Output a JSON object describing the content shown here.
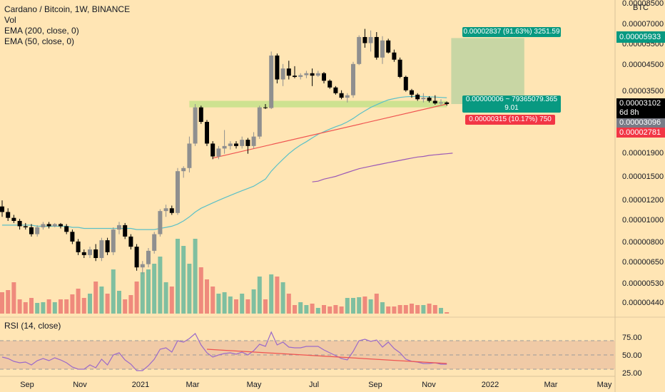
{
  "legend": {
    "title": "Cardano / Bitcoin, 1W, BINANCE",
    "vol": "Vol",
    "ema200": "EMA (200, close, 0)",
    "ema50": "EMA (50, close, 0)"
  },
  "rsi_legend": "RSI (14, close)",
  "price_axis": {
    "currency": "BTC",
    "current_price": "0.00003102",
    "countdown": "6d 8h",
    "tag_gray": "0.00003096",
    "tag_green": "0.00005933",
    "tag_red": "0.00002781"
  },
  "position_tool": {
    "target_label": "0.00002837 (91.63%) 3251.59",
    "mid_label_1": "0.00000006 ~ 79365079.365",
    "mid_label_2": "9.01",
    "stop_label": "0.00000315 (10.17%) 750"
  },
  "colors": {
    "background": "#ffe5b4",
    "bull": "#8f8f8f",
    "bear": "#000000",
    "vol_up": "#7fbfa0",
    "vol_down": "#ef8a7c",
    "ema50": "#5bc0c7",
    "ema200": "#9b59b6",
    "trendline": "#ef5350",
    "zone": "#c6e28a",
    "target_zone": "#c8d6a4",
    "green_tag": "#089981",
    "red_tag": "#f23645",
    "rsi_line": "#9b6ac9",
    "rsi_band": "#f0caa6"
  },
  "chart_data": {
    "type": "candlestick",
    "y_axis_scale": "log",
    "y_ticks": [
      "0.00008500",
      "0.00007000",
      "0.00005500",
      "0.00004500",
      "0.00003500",
      "0.00002500",
      "0.00001900",
      "0.00001500",
      "0.00001200",
      "0.00001000",
      "0.00000800",
      "0.00000650",
      "0.00000530",
      "0.00000440"
    ],
    "x_ticks": [
      "Sep",
      "Nov",
      "2021",
      "Mar",
      "May",
      "Jul",
      "Sep",
      "Nov",
      "2022",
      "Mar",
      "May"
    ],
    "rsi_ticks": [
      "75.00",
      "50.00",
      "25.00"
    ],
    "candles": [
      {
        "o": 1.13e-05,
        "h": 1.2e-05,
        "l": 1.02e-05,
        "c": 1.07e-05
      },
      {
        "o": 1.07e-05,
        "h": 1.11e-05,
        "l": 9.8e-06,
        "c": 1.01e-05
      },
      {
        "o": 1.01e-05,
        "h": 1.04e-05,
        "l": 9.6e-06,
        "c": 9.8e-06
      },
      {
        "o": 9.8e-06,
        "h": 1e-05,
        "l": 9e-06,
        "c": 9.3e-06
      },
      {
        "o": 9.3e-06,
        "h": 9.6e-06,
        "l": 9e-06,
        "c": 9.2e-06
      },
      {
        "o": 9.2e-06,
        "h": 9.5e-06,
        "l": 8.4e-06,
        "c": 8.6e-06
      },
      {
        "o": 8.6e-06,
        "h": 9.4e-06,
        "l": 8.4e-06,
        "c": 9.2e-06
      },
      {
        "o": 9.2e-06,
        "h": 9.7e-06,
        "l": 9e-06,
        "c": 9.5e-06
      },
      {
        "o": 9.5e-06,
        "h": 9.7e-06,
        "l": 9.1e-06,
        "c": 9.3e-06
      },
      {
        "o": 9.3e-06,
        "h": 9.6e-06,
        "l": 9.2e-06,
        "c": 9.5e-06
      },
      {
        "o": 9.5e-06,
        "h": 9.6e-06,
        "l": 9.1e-06,
        "c": 9.3e-06
      },
      {
        "o": 9.3e-06,
        "h": 9.5e-06,
        "l": 8.6e-06,
        "c": 8.8e-06
      },
      {
        "o": 8.8e-06,
        "h": 9e-06,
        "l": 7.8e-06,
        "c": 8e-06
      },
      {
        "o": 8e-06,
        "h": 8.2e-06,
        "l": 7e-06,
        "c": 7.2e-06
      },
      {
        "o": 7.2e-06,
        "h": 7.4e-06,
        "l": 6.8e-06,
        "c": 7e-06
      },
      {
        "o": 7e-06,
        "h": 7.6e-06,
        "l": 6.8e-06,
        "c": 7.4e-06
      },
      {
        "o": 7.4e-06,
        "h": 7.8e-06,
        "l": 6.6e-06,
        "c": 6.8e-06
      },
      {
        "o": 6.8e-06,
        "h": 8.3e-06,
        "l": 6.6e-06,
        "c": 8.1e-06
      },
      {
        "o": 8.1e-06,
        "h": 8.3e-06,
        "l": 7e-06,
        "c": 7.2e-06
      },
      {
        "o": 7.2e-06,
        "h": 9.2e-06,
        "l": 7e-06,
        "c": 9e-06
      },
      {
        "o": 9e-06,
        "h": 9.7e-06,
        "l": 8.6e-06,
        "c": 9.4e-06
      },
      {
        "o": 9.4e-06,
        "h": 9.6e-06,
        "l": 8.2e-06,
        "c": 8.4e-06
      },
      {
        "o": 8.4e-06,
        "h": 8.6e-06,
        "l": 7.4e-06,
        "c": 7.6e-06
      },
      {
        "o": 7.6e-06,
        "h": 7.8e-06,
        "l": 6e-06,
        "c": 6.2e-06
      },
      {
        "o": 6.2e-06,
        "h": 6.6e-06,
        "l": 5.8e-06,
        "c": 6.4e-06
      },
      {
        "o": 6.4e-06,
        "h": 7.5e-06,
        "l": 6.2e-06,
        "c": 7.3e-06
      },
      {
        "o": 7.3e-06,
        "h": 8.8e-06,
        "l": 7.1e-06,
        "c": 8.6e-06
      },
      {
        "o": 8.6e-06,
        "h": 1.1e-05,
        "l": 8.4e-06,
        "c": 1.08e-05
      },
      {
        "o": 1.08e-05,
        "h": 1.15e-05,
        "l": 1.02e-05,
        "c": 1.11e-05
      },
      {
        "o": 1.11e-05,
        "h": 1.14e-05,
        "l": 1.04e-05,
        "c": 1.06e-05
      },
      {
        "o": 1.06e-05,
        "h": 1.65e-05,
        "l": 1.04e-05,
        "c": 1.6e-05
      },
      {
        "o": 1.6e-05,
        "h": 1.68e-05,
        "l": 1.5e-05,
        "c": 1.65e-05
      },
      {
        "o": 1.65e-05,
        "h": 2.25e-05,
        "l": 1.58e-05,
        "c": 2.1e-05
      },
      {
        "o": 2.1e-05,
        "h": 3.1e-05,
        "l": 2.05e-05,
        "c": 3e-05
      },
      {
        "o": 3e-05,
        "h": 3.05e-05,
        "l": 2.55e-05,
        "c": 2.6e-05
      },
      {
        "o": 2.6e-05,
        "h": 2.65e-05,
        "l": 2.05e-05,
        "c": 2.1e-05
      },
      {
        "o": 2.1e-05,
        "h": 2.15e-05,
        "l": 1.8e-05,
        "c": 1.85e-05
      },
      {
        "o": 1.85e-05,
        "h": 2.05e-05,
        "l": 1.8e-05,
        "c": 2e-05
      },
      {
        "o": 2e-05,
        "h": 2.4e-05,
        "l": 1.9e-05,
        "c": 2.05e-05
      },
      {
        "o": 2.05e-05,
        "h": 2.15e-05,
        "l": 1.98e-05,
        "c": 2.1e-05
      },
      {
        "o": 2.1e-05,
        "h": 2.15e-05,
        "l": 2e-05,
        "c": 2.05e-05
      },
      {
        "o": 2.05e-05,
        "h": 2.25e-05,
        "l": 2e-05,
        "c": 2.18e-05
      },
      {
        "o": 2.18e-05,
        "h": 2.22e-05,
        "l": 1.9e-05,
        "c": 2.05e-05
      },
      {
        "o": 2.05e-05,
        "h": 2.35e-05,
        "l": 2e-05,
        "c": 2.25e-05
      },
      {
        "o": 2.25e-05,
        "h": 3.05e-05,
        "l": 2.2e-05,
        "c": 3e-05
      },
      {
        "o": 3e-05,
        "h": 3.1e-05,
        "l": 2.95e-05,
        "c": 2.98e-05
      },
      {
        "o": 2.98e-05,
        "h": 5.2e-05,
        "l": 2.95e-05,
        "c": 5e-05
      },
      {
        "o": 5e-05,
        "h": 5.1e-05,
        "l": 3.8e-05,
        "c": 3.95e-05
      },
      {
        "o": 3.95e-05,
        "h": 4.6e-05,
        "l": 3.7e-05,
        "c": 4.4e-05
      },
      {
        "o": 4.4e-05,
        "h": 4.75e-05,
        "l": 3.95e-05,
        "c": 4.1e-05
      },
      {
        "o": 4.1e-05,
        "h": 4.5e-05,
        "l": 4e-05,
        "c": 4.05e-05
      },
      {
        "o": 4.05e-05,
        "h": 4.2e-05,
        "l": 3.95e-05,
        "c": 4.12e-05
      },
      {
        "o": 4.12e-05,
        "h": 4.3e-05,
        "l": 4e-05,
        "c": 4.2e-05
      },
      {
        "o": 4.2e-05,
        "h": 4.4e-05,
        "l": 3.7e-05,
        "c": 4.1e-05
      },
      {
        "o": 4.1e-05,
        "h": 4.3e-05,
        "l": 4.05e-05,
        "c": 4.2e-05
      },
      {
        "o": 4.2e-05,
        "h": 4.25e-05,
        "l": 3.8e-05,
        "c": 3.9e-05
      },
      {
        "o": 3.9e-05,
        "h": 3.95e-05,
        "l": 3.6e-05,
        "c": 3.65e-05
      },
      {
        "o": 3.65e-05,
        "h": 3.7e-05,
        "l": 3.4e-05,
        "c": 3.45e-05
      },
      {
        "o": 3.45e-05,
        "h": 3.55e-05,
        "l": 3.25e-05,
        "c": 3.3e-05
      },
      {
        "o": 3.3e-05,
        "h": 3.45e-05,
        "l": 3.15e-05,
        "c": 3.38e-05
      },
      {
        "o": 3.38e-05,
        "h": 4.7e-05,
        "l": 3.3e-05,
        "c": 4.6e-05
      },
      {
        "o": 4.6e-05,
        "h": 6.1e-05,
        "l": 4.55e-05,
        "c": 6e-05
      },
      {
        "o": 6e-05,
        "h": 6.5e-05,
        "l": 5.4e-05,
        "c": 5.65e-05
      },
      {
        "o": 5.65e-05,
        "h": 6.4e-05,
        "l": 5.2e-05,
        "c": 6e-05
      },
      {
        "o": 6e-05,
        "h": 6.3e-05,
        "l": 4.8e-05,
        "c": 4.9e-05
      },
      {
        "o": 4.9e-05,
        "h": 6.05e-05,
        "l": 4.6e-05,
        "c": 5.8e-05
      },
      {
        "o": 5.8e-05,
        "h": 5.9e-05,
        "l": 5.1e-05,
        "c": 5.15e-05
      },
      {
        "o": 5.15e-05,
        "h": 5.3e-05,
        "l": 4.7e-05,
        "c": 4.8e-05
      },
      {
        "o": 4.8e-05,
        "h": 4.9e-05,
        "l": 4e-05,
        "c": 4.05e-05
      },
      {
        "o": 4.05e-05,
        "h": 4.1e-05,
        "l": 3.5e-05,
        "c": 3.55e-05
      },
      {
        "o": 3.55e-05,
        "h": 3.6e-05,
        "l": 3.3e-05,
        "c": 3.4e-05
      },
      {
        "o": 3.4e-05,
        "h": 3.45e-05,
        "l": 3.2e-05,
        "c": 3.25e-05
      },
      {
        "o": 3.25e-05,
        "h": 3.45e-05,
        "l": 3.15e-05,
        "c": 3.3e-05
      },
      {
        "o": 3.3e-05,
        "h": 3.35e-05,
        "l": 3.15e-05,
        "c": 3.2e-05
      },
      {
        "o": 3.2e-05,
        "h": 3.38e-05,
        "l": 3.08e-05,
        "c": 3.12e-05
      },
      {
        "o": 3.12e-05,
        "h": 3.25e-05,
        "l": 3.05e-05,
        "c": 3.15e-05
      },
      {
        "o": 3.15e-05,
        "h": 3.18e-05,
        "l": 3.05e-05,
        "c": 3.1e-05
      }
    ],
    "volume": [
      {
        "v": 30,
        "up": false
      },
      {
        "v": 33,
        "up": false
      },
      {
        "v": 44,
        "up": false
      },
      {
        "v": 20,
        "up": false
      },
      {
        "v": 16,
        "up": false
      },
      {
        "v": 22,
        "up": false
      },
      {
        "v": 15,
        "up": true
      },
      {
        "v": 16,
        "up": true
      },
      {
        "v": 20,
        "up": false
      },
      {
        "v": 16,
        "up": true
      },
      {
        "v": 20,
        "up": false
      },
      {
        "v": 20,
        "up": false
      },
      {
        "v": 27,
        "up": false
      },
      {
        "v": 35,
        "up": false
      },
      {
        "v": 22,
        "up": false
      },
      {
        "v": 28,
        "up": true
      },
      {
        "v": 45,
        "up": false
      },
      {
        "v": 38,
        "up": true
      },
      {
        "v": 28,
        "up": false
      },
      {
        "v": 62,
        "up": true
      },
      {
        "v": 32,
        "up": true
      },
      {
        "v": 20,
        "up": false
      },
      {
        "v": 26,
        "up": false
      },
      {
        "v": 45,
        "up": false
      },
      {
        "v": 58,
        "up": true
      },
      {
        "v": 62,
        "up": true
      },
      {
        "v": 70,
        "up": true
      },
      {
        "v": 80,
        "up": true
      },
      {
        "v": 44,
        "up": true
      },
      {
        "v": 38,
        "up": false
      },
      {
        "v": 105,
        "up": true
      },
      {
        "v": 95,
        "up": true
      },
      {
        "v": 70,
        "up": true
      },
      {
        "v": 105,
        "up": true
      },
      {
        "v": 65,
        "up": false
      },
      {
        "v": 48,
        "up": false
      },
      {
        "v": 38,
        "up": false
      },
      {
        "v": 28,
        "up": true
      },
      {
        "v": 30,
        "up": true
      },
      {
        "v": 24,
        "up": true
      },
      {
        "v": 20,
        "up": false
      },
      {
        "v": 28,
        "up": true
      },
      {
        "v": 20,
        "up": false
      },
      {
        "v": 34,
        "up": true
      },
      {
        "v": 52,
        "up": true
      },
      {
        "v": 20,
        "up": false
      },
      {
        "v": 55,
        "up": true
      },
      {
        "v": 52,
        "up": false
      },
      {
        "v": 44,
        "up": true
      },
      {
        "v": 28,
        "up": false
      },
      {
        "v": 12,
        "up": false
      },
      {
        "v": 16,
        "up": true
      },
      {
        "v": 12,
        "up": true
      },
      {
        "v": 14,
        "up": false
      },
      {
        "v": 8,
        "up": true
      },
      {
        "v": 12,
        "up": false
      },
      {
        "v": 10,
        "up": false
      },
      {
        "v": 12,
        "up": false
      },
      {
        "v": 10,
        "up": false
      },
      {
        "v": 22,
        "up": true
      },
      {
        "v": 22,
        "up": true
      },
      {
        "v": 23,
        "up": true
      },
      {
        "v": 24,
        "up": false
      },
      {
        "v": 20,
        "up": true
      },
      {
        "v": 28,
        "up": false
      },
      {
        "v": 16,
        "up": true
      },
      {
        "v": 10,
        "up": false
      },
      {
        "v": 10,
        "up": false
      },
      {
        "v": 12,
        "up": false
      },
      {
        "v": 12,
        "up": false
      },
      {
        "v": 14,
        "up": false
      },
      {
        "v": 12,
        "up": false
      },
      {
        "v": 12,
        "up": true
      },
      {
        "v": 14,
        "up": false
      },
      {
        "v": 12,
        "up": false
      },
      {
        "v": 8,
        "up": true
      },
      {
        "v": 2,
        "up": false
      }
    ],
    "ema50": [
      9.4e-06,
      9.4e-06,
      9.4e-06,
      9.4e-06,
      9.4e-06,
      9.4e-06,
      9.3e-06,
      9.3e-06,
      9.3e-06,
      9.3e-06,
      9.3e-06,
      9.3e-06,
      9.2e-06,
      9.2e-06,
      9.1e-06,
      9.1e-06,
      9.1e-06,
      9.1e-06,
      9.1e-06,
      9.1e-06,
      9.1e-06,
      9.1e-06,
      9.1e-06,
      9e-06,
      9e-06,
      9e-06,
      9e-06,
      9.1e-06,
      9.2e-06,
      9.3e-06,
      9.5e-06,
      9.8e-06,
      1.02e-05,
      1.07e-05,
      1.11e-05,
      1.14e-05,
      1.17e-05,
      1.2e-05,
      1.23e-05,
      1.26e-05,
      1.29e-05,
      1.32e-05,
      1.35e-05,
      1.38e-05,
      1.43e-05,
      1.48e-05,
      1.6e-05,
      1.7e-05,
      1.8e-05,
      1.9e-05,
      1.99e-05,
      2.07e-05,
      2.14e-05,
      2.22e-05,
      2.3e-05,
      2.36e-05,
      2.42e-05,
      2.48e-05,
      2.53e-05,
      2.6e-05,
      2.69e-05,
      2.8e-05,
      2.9e-05,
      3e-05,
      3.08e-05,
      3.16e-05,
      3.23e-05,
      3.27e-05,
      3.31e-05,
      3.33e-05,
      3.34e-05,
      3.34e-05,
      3.34e-05,
      3.33e-05,
      3.32e-05,
      3.31e-05,
      3.3e-05
    ],
    "ema200": [
      1.44e-05,
      1.45e-05,
      1.48e-05,
      1.5e-05,
      1.52e-05,
      1.55e-05,
      1.58e-05,
      1.61e-05,
      1.64e-05,
      1.66e-05,
      1.68e-05,
      1.7e-05,
      1.72e-05,
      1.74e-05,
      1.76e-05,
      1.78e-05,
      1.8e-05,
      1.82e-05,
      1.84e-05,
      1.85e-05,
      1.87e-05,
      1.88e-05,
      1.89e-05,
      1.9e-05,
      1.91e-05
    ],
    "ema200_start_index": 53,
    "rsi": [
      47,
      45,
      41,
      39,
      40,
      36,
      42,
      45,
      42,
      46,
      43,
      39,
      33,
      30,
      30,
      36,
      32,
      44,
      36,
      50,
      53,
      43,
      37,
      28,
      28,
      35,
      44,
      58,
      60,
      54,
      70,
      68,
      73,
      80,
      64,
      53,
      47,
      50,
      52,
      53,
      51,
      54,
      50,
      56,
      65,
      62,
      82,
      64,
      68,
      61,
      60,
      60,
      62,
      62,
      62,
      57,
      53,
      49,
      45,
      43,
      55,
      70,
      72,
      69,
      71,
      61,
      68,
      59,
      53,
      44,
      41,
      40,
      38,
      38,
      39,
      37,
      37
    ],
    "rsi_levels": {
      "upper": 70,
      "middle": 50,
      "lower": 30
    },
    "rsi_range": [
      20,
      90
    ],
    "resistance_zone": {
      "low": 3e-05,
      "high": 3.2e-05,
      "start_index": 32,
      "end_index": 76
    },
    "trendline": {
      "start_index": 36,
      "start_value": 1.82e-05,
      "end_index": 76,
      "end_value": 3.1e-05
    },
    "rsi_trendline": {
      "start_index": 35,
      "start_value": 58,
      "end_index": 76,
      "end_value": 38
    },
    "position": {
      "entry": 3.1e-05,
      "target": 5.94e-05,
      "stop": 2.78e-05,
      "start_index": 77,
      "end_index": 89
    }
  }
}
